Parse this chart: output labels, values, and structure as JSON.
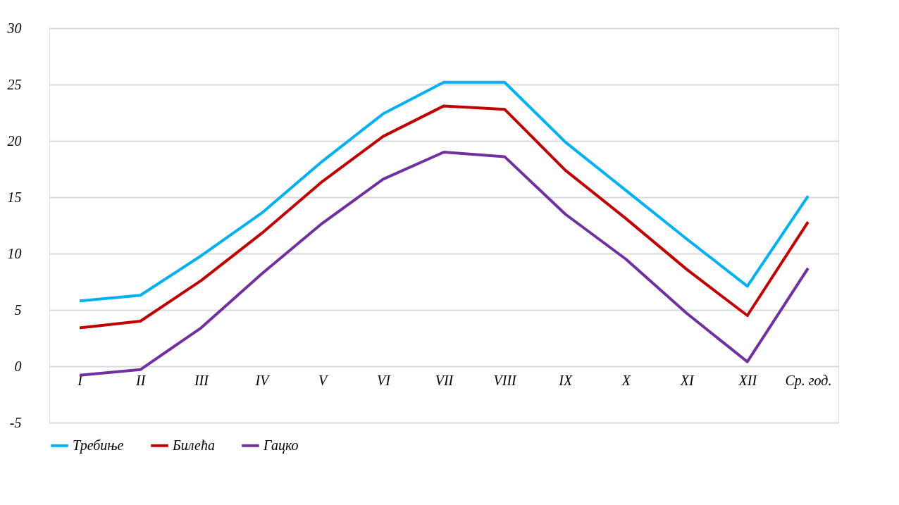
{
  "chart_data": {
    "type": "line",
    "categories": [
      "I",
      "II",
      "III",
      "IV",
      "V",
      "VI",
      "VII",
      "VIII",
      "IX",
      "X",
      "XI",
      "XII",
      "Ср. год."
    ],
    "series": [
      {
        "name": "Требиње",
        "color": "#00b0f0",
        "values": [
          5.8,
          6.3,
          9.8,
          13.6,
          18.2,
          22.4,
          25.2,
          25.2,
          19.9,
          15.6,
          11.3,
          7.1,
          15.1
        ]
      },
      {
        "name": "Билећа",
        "color": "#c00000",
        "values": [
          3.4,
          4.0,
          7.6,
          11.8,
          16.4,
          20.4,
          23.1,
          22.8,
          17.4,
          13.1,
          8.6,
          4.5,
          12.8
        ]
      },
      {
        "name": "Гацко",
        "color": "#7030a0",
        "values": [
          -0.8,
          -0.3,
          3.4,
          8.2,
          12.7,
          16.6,
          19.0,
          18.6,
          13.5,
          9.5,
          4.7,
          0.4,
          8.7
        ]
      }
    ],
    "ylim": [
      -5,
      30
    ],
    "yticks": [
      -5,
      0,
      5,
      10,
      15,
      20,
      25,
      30
    ],
    "grid": "y",
    "legend": "bottom",
    "marker": "none",
    "line_style": "solid"
  }
}
